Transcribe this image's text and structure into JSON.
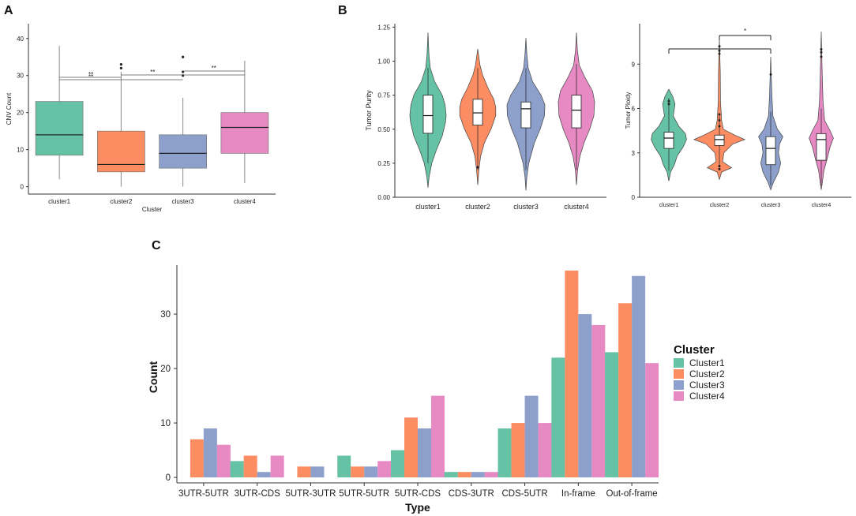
{
  "panel_labels": [
    "A",
    "B",
    "C"
  ],
  "colors": {
    "cluster1": "#66c2a5",
    "cluster2": "#fc8d62",
    "cluster3": "#8da0cb",
    "cluster4": "#e78ac3"
  },
  "chart_data": [
    {
      "panel": "A",
      "type": "box",
      "xlabel": "Cluster",
      "ylabel": "CNV Count",
      "ylim": [
        -2,
        44
      ],
      "yticks": [
        0,
        10,
        20,
        30,
        40
      ],
      "categories": [
        "cluster1",
        "cluster2",
        "cluster3",
        "cluster4"
      ],
      "boxes": [
        {
          "min": 2,
          "q1": 8.5,
          "median": 14,
          "q3": 23,
          "max": 38,
          "outliers": []
        },
        {
          "min": 0,
          "q1": 4,
          "median": 6,
          "q3": 15,
          "max": 31,
          "outliers": [
            32,
            33
          ]
        },
        {
          "min": 0,
          "q1": 5,
          "median": 9,
          "q3": 14,
          "max": 24,
          "outliers": [
            30,
            31,
            35
          ]
        },
        {
          "min": 1,
          "q1": 9,
          "median": 16,
          "q3": 20,
          "max": 34,
          "outliers": []
        }
      ],
      "significance": [
        {
          "from": 0,
          "to": 1,
          "label": "**"
        },
        {
          "from": 0,
          "to": 2,
          "label": "**"
        },
        {
          "from": 1,
          "to": 3,
          "label": "**"
        },
        {
          "from": 2,
          "to": 3,
          "label": "**"
        }
      ]
    },
    {
      "panel": "B-left",
      "type": "violin",
      "xlabel": "",
      "ylabel": "Tumor Purity",
      "ylim": [
        0,
        1.25
      ],
      "yticks": [
        0.0,
        0.25,
        0.5,
        0.75,
        1.0,
        1.25
      ],
      "ytick_labels": [
        "0.00",
        "0.25",
        "0.50",
        "0.75",
        "1.00",
        "1.25"
      ],
      "categories": [
        "cluster1",
        "cluster2",
        "cluster3",
        "cluster4"
      ],
      "violins": [
        {
          "range": [
            0.07,
            1.21
          ],
          "q1": 0.47,
          "median": 0.6,
          "q3": 0.75,
          "lower": 0.25,
          "upper": 0.95,
          "outliers": [],
          "profile": [
            [
              0.07,
              0
            ],
            [
              0.15,
              0.06
            ],
            [
              0.25,
              0.2
            ],
            [
              0.35,
              0.45
            ],
            [
              0.45,
              0.75
            ],
            [
              0.55,
              0.92
            ],
            [
              0.6,
              0.96
            ],
            [
              0.68,
              0.9
            ],
            [
              0.75,
              0.75
            ],
            [
              0.85,
              0.35
            ],
            [
              0.95,
              0.12
            ],
            [
              1.05,
              0.05
            ],
            [
              1.21,
              0
            ]
          ]
        },
        {
          "range": [
            0.09,
            1.09
          ],
          "q1": 0.53,
          "median": 0.62,
          "q3": 0.72,
          "lower": 0.2,
          "upper": 0.95,
          "outliers": [
            0.22
          ],
          "profile": [
            [
              0.09,
              0
            ],
            [
              0.2,
              0.06
            ],
            [
              0.3,
              0.15
            ],
            [
              0.4,
              0.35
            ],
            [
              0.5,
              0.7
            ],
            [
              0.6,
              0.95
            ],
            [
              0.66,
              0.95
            ],
            [
              0.72,
              0.85
            ],
            [
              0.8,
              0.55
            ],
            [
              0.9,
              0.25
            ],
            [
              0.97,
              0.12
            ],
            [
              1.09,
              0
            ]
          ]
        },
        {
          "range": [
            0.05,
            1.17
          ],
          "q1": 0.51,
          "median": 0.65,
          "q3": 0.7,
          "lower": 0.2,
          "upper": 0.95,
          "outliers": [],
          "profile": [
            [
              0.05,
              0
            ],
            [
              0.15,
              0.05
            ],
            [
              0.25,
              0.15
            ],
            [
              0.4,
              0.45
            ],
            [
              0.5,
              0.75
            ],
            [
              0.6,
              0.98
            ],
            [
              0.68,
              1
            ],
            [
              0.75,
              0.8
            ],
            [
              0.85,
              0.35
            ],
            [
              0.95,
              0.12
            ],
            [
              1.05,
              0.05
            ],
            [
              1.17,
              0
            ]
          ]
        },
        {
          "range": [
            0.09,
            1.21
          ],
          "q1": 0.51,
          "median": 0.64,
          "q3": 0.75,
          "lower": 0.2,
          "upper": 0.98,
          "outliers": [],
          "profile": [
            [
              0.09,
              0
            ],
            [
              0.2,
              0.06
            ],
            [
              0.3,
              0.18
            ],
            [
              0.4,
              0.4
            ],
            [
              0.5,
              0.7
            ],
            [
              0.6,
              0.92
            ],
            [
              0.7,
              0.96
            ],
            [
              0.78,
              0.85
            ],
            [
              0.88,
              0.45
            ],
            [
              0.97,
              0.15
            ],
            [
              1.08,
              0.05
            ],
            [
              1.21,
              0
            ]
          ]
        }
      ]
    },
    {
      "panel": "B-right",
      "type": "violin",
      "xlabel": "",
      "ylabel": "Tumor Ploidy",
      "ylim": [
        0,
        11.5
      ],
      "yticks": [
        0,
        3,
        6,
        9
      ],
      "categories": [
        "cluster1",
        "cluster2",
        "cluster3",
        "cluster4"
      ],
      "violins": [
        {
          "range": [
            1.1,
            7.3
          ],
          "q1": 3.3,
          "median": 4.0,
          "q3": 4.4,
          "lower": 1.8,
          "upper": 6.7,
          "outliers": [
            6.3,
            6.5
          ],
          "profile": [
            [
              1.1,
              0
            ],
            [
              1.7,
              0.08
            ],
            [
              2.2,
              0.25
            ],
            [
              2.8,
              0.38
            ],
            [
              3.4,
              0.65
            ],
            [
              3.9,
              0.8
            ],
            [
              4.3,
              0.75
            ],
            [
              4.8,
              0.45
            ],
            [
              5.5,
              0.2
            ],
            [
              6.3,
              0.28
            ],
            [
              6.8,
              0.18
            ],
            [
              7.3,
              0
            ]
          ]
        },
        {
          "range": [
            1.2,
            10.7
          ],
          "q1": 3.5,
          "median": 3.9,
          "q3": 4.2,
          "lower": 2.0,
          "upper": 5.5,
          "outliers": [
            1.9,
            2.1,
            4.8,
            5.2,
            5.6,
            9.7,
            9.9,
            10.2
          ],
          "profile": [
            [
              1.2,
              0
            ],
            [
              1.7,
              0.1
            ],
            [
              2.0,
              0.55
            ],
            [
              2.4,
              0.15
            ],
            [
              3.0,
              0.2
            ],
            [
              3.6,
              0.6
            ],
            [
              3.9,
              1.15
            ],
            [
              4.2,
              0.7
            ],
            [
              4.6,
              0.18
            ],
            [
              5.2,
              0.1
            ],
            [
              6.5,
              0.05
            ],
            [
              8.5,
              0.04
            ],
            [
              10.7,
              0
            ]
          ]
        },
        {
          "range": [
            0.5,
            9.5
          ],
          "q1": 2.2,
          "median": 3.3,
          "q3": 4.1,
          "lower": 0.8,
          "upper": 5.8,
          "outliers": [
            8.3
          ],
          "profile": [
            [
              0.5,
              0
            ],
            [
              1.0,
              0.12
            ],
            [
              1.7,
              0.35
            ],
            [
              2.3,
              0.45
            ],
            [
              3.0,
              0.35
            ],
            [
              3.6,
              0.4
            ],
            [
              4.1,
              0.55
            ],
            [
              4.6,
              0.3
            ],
            [
              5.5,
              0.1
            ],
            [
              7.0,
              0.05
            ],
            [
              9.5,
              0
            ]
          ]
        },
        {
          "range": [
            0.5,
            11.2
          ],
          "q1": 2.5,
          "median": 3.9,
          "q3": 4.3,
          "lower": 0.8,
          "upper": 6.0,
          "outliers": [
            9.5,
            9.8,
            10.0
          ],
          "profile": [
            [
              0.5,
              0
            ],
            [
              1.0,
              0.05
            ],
            [
              1.8,
              0.12
            ],
            [
              2.5,
              0.25
            ],
            [
              3.4,
              0.4
            ],
            [
              4.0,
              0.55
            ],
            [
              4.5,
              0.4
            ],
            [
              5.2,
              0.15
            ],
            [
              6.5,
              0.08
            ],
            [
              8.5,
              0.04
            ],
            [
              11.2,
              0
            ]
          ]
        }
      ],
      "significance": [
        {
          "from": 0,
          "to": 2,
          "label": ""
        },
        {
          "from": 1,
          "to": 2,
          "label": "*"
        }
      ]
    },
    {
      "panel": "C",
      "type": "bar",
      "xlabel": "Type",
      "ylabel": "Count",
      "ylim": [
        -1,
        39
      ],
      "yticks": [
        0,
        10,
        20,
        30
      ],
      "categories": [
        "3UTR-5UTR",
        "3UTR-CDS",
        "5UTR-3UTR",
        "5UTR-5UTR",
        "5UTR-CDS",
        "CDS-3UTR",
        "CDS-5UTR",
        "In-frame",
        "Out-of-frame"
      ],
      "series": [
        {
          "name": "Cluster1",
          "values": [
            0,
            3,
            0,
            4,
            5,
            1,
            9,
            22,
            23
          ]
        },
        {
          "name": "Cluster2",
          "values": [
            7,
            4,
            2,
            2,
            11,
            1,
            10,
            38,
            32
          ]
        },
        {
          "name": "Cluster3",
          "values": [
            9,
            1,
            2,
            2,
            9,
            1,
            15,
            30,
            37
          ]
        },
        {
          "name": "Cluster4",
          "values": [
            6,
            4,
            0,
            3,
            15,
            1,
            10,
            28,
            21
          ]
        }
      ],
      "legend_title": "Cluster",
      "legend_position": "right"
    }
  ]
}
